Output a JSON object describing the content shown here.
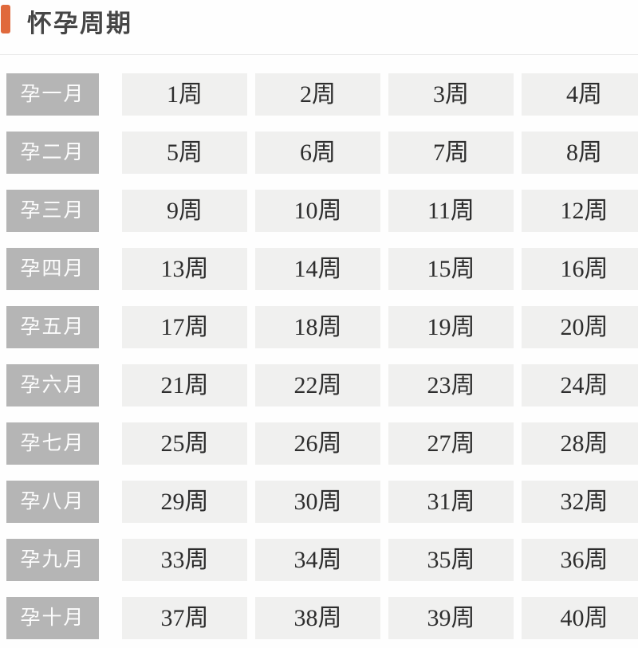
{
  "header": {
    "title": "怀孕周期"
  },
  "colors": {
    "accent": "#e0693c",
    "title_text": "#464646",
    "label_bg": "#b5b5b5",
    "label_text": "#fdfdfd",
    "cell_bg": "#f0f0ef",
    "cell_text": "#2d2d2d",
    "divider": "#e9e9e9",
    "page_bg": "#fefefe"
  },
  "table": {
    "rows": [
      {
        "label": "孕一月",
        "weeks": [
          "1周",
          "2周",
          "3周",
          "4周"
        ]
      },
      {
        "label": "孕二月",
        "weeks": [
          "5周",
          "6周",
          "7周",
          "8周"
        ]
      },
      {
        "label": "孕三月",
        "weeks": [
          "9周",
          "10周",
          "11周",
          "12周"
        ]
      },
      {
        "label": "孕四月",
        "weeks": [
          "13周",
          "14周",
          "15周",
          "16周"
        ]
      },
      {
        "label": "孕五月",
        "weeks": [
          "17周",
          "18周",
          "19周",
          "20周"
        ]
      },
      {
        "label": "孕六月",
        "weeks": [
          "21周",
          "22周",
          "23周",
          "24周"
        ]
      },
      {
        "label": "孕七月",
        "weeks": [
          "25周",
          "26周",
          "27周",
          "28周"
        ]
      },
      {
        "label": "孕八月",
        "weeks": [
          "29周",
          "30周",
          "31周",
          "32周"
        ]
      },
      {
        "label": "孕九月",
        "weeks": [
          "33周",
          "34周",
          "35周",
          "36周"
        ]
      },
      {
        "label": "孕十月",
        "weeks": [
          "37周",
          "38周",
          "39周",
          "40周"
        ]
      }
    ]
  }
}
